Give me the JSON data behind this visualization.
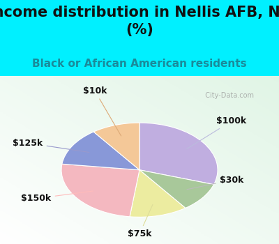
{
  "title": "Income distribution in Nellis AFB, NV\n(%)",
  "subtitle": "Black or African American residents",
  "labels": [
    "$100k",
    "$30k",
    "$75k",
    "$150k",
    "$125k",
    "$10k"
  ],
  "sizes": [
    30,
    10,
    12,
    25,
    13,
    10
  ],
  "colors": [
    "#c0aee0",
    "#a8c89a",
    "#ececa0",
    "#f4b8c0",
    "#8898d8",
    "#f4c898"
  ],
  "title_fontsize": 15,
  "subtitle_fontsize": 11,
  "label_fontsize": 9,
  "bg_top": "#00f0ff",
  "startangle": 90,
  "watermark": "  City-Data.com"
}
